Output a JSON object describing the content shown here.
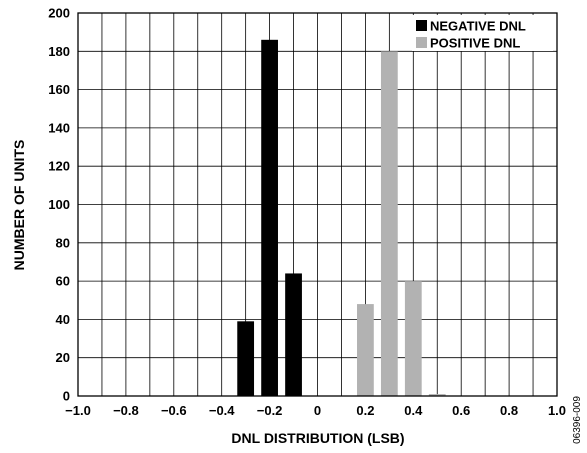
{
  "chart_data": {
    "type": "bar",
    "xlabel": "DNL DISTRIBUTION (LSB)",
    "ylabel": "NUMBER OF UNITS",
    "xlim": [
      -1.0,
      1.0
    ],
    "ylim": [
      0,
      200
    ],
    "x_ticks": [
      -1.0,
      -0.8,
      -0.6,
      -0.4,
      -0.2,
      0,
      0.2,
      0.4,
      0.6,
      0.8,
      1.0
    ],
    "x_tick_labels": [
      "−1.0",
      "−0.8",
      "−0.6",
      "−0.4",
      "−0.2",
      "0",
      "0.2",
      "0.4",
      "0.6",
      "0.8",
      "1.0"
    ],
    "y_ticks": [
      0,
      20,
      40,
      60,
      80,
      100,
      120,
      140,
      160,
      180,
      200
    ],
    "y_tick_labels": [
      "0",
      "20",
      "40",
      "60",
      "80",
      "100",
      "120",
      "140",
      "160",
      "180",
      "200"
    ],
    "bar_width": 0.07,
    "grid": true,
    "legend_position": "top-right",
    "series": [
      {
        "name": "NEGATIVE DNL",
        "color": "#000000",
        "points": [
          {
            "x": -0.3,
            "y": 39
          },
          {
            "x": -0.2,
            "y": 186
          },
          {
            "x": -0.1,
            "y": 64
          }
        ]
      },
      {
        "name": "POSITIVE DNL",
        "color": "#b2b2b2",
        "points": [
          {
            "x": 0.2,
            "y": 48
          },
          {
            "x": 0.3,
            "y": 180
          },
          {
            "x": 0.4,
            "y": 60
          },
          {
            "x": 0.5,
            "y": 1
          }
        ]
      }
    ],
    "figure_id": "06396-009"
  }
}
